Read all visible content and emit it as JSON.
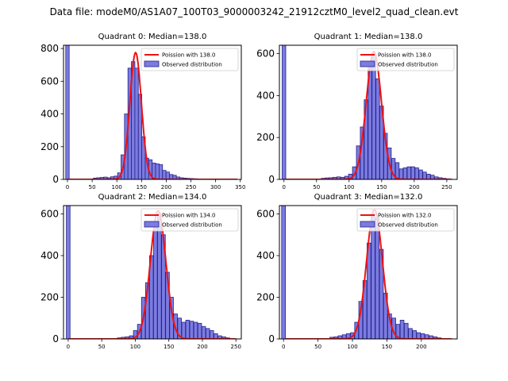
{
  "figure": {
    "suptitle": "Data file: modeM0/AS1A07_100T03_9000003242_21912cztM0_level2_quad_clean.evt"
  },
  "colors": {
    "bar_fill": "#7b7be0",
    "bar_edge": "#23238c",
    "curve": "#ee1111"
  },
  "chart_data": [
    {
      "type": "bar",
      "title": "Quadrant 0: Median=138.0",
      "xlim": [
        -8,
        352
      ],
      "ylim": [
        0,
        820
      ],
      "xticks": [
        0,
        50,
        100,
        150,
        200,
        250,
        300,
        350
      ],
      "yticks": [
        0,
        200,
        400,
        600,
        800
      ],
      "legend": {
        "position": "top-right",
        "entries": [
          "Poission with 138.0",
          "Observed distribution"
        ]
      },
      "bin_width": 7,
      "bins": [
        [
          0,
          820
        ],
        [
          56,
          8
        ],
        [
          63,
          10
        ],
        [
          70,
          12
        ],
        [
          77,
          14
        ],
        [
          84,
          10
        ],
        [
          91,
          16
        ],
        [
          98,
          20
        ],
        [
          105,
          40
        ],
        [
          112,
          150
        ],
        [
          119,
          400
        ],
        [
          126,
          680
        ],
        [
          133,
          720
        ],
        [
          140,
          680
        ],
        [
          147,
          520
        ],
        [
          154,
          260
        ],
        [
          161,
          130
        ],
        [
          168,
          120
        ],
        [
          175,
          100
        ],
        [
          182,
          95
        ],
        [
          189,
          90
        ],
        [
          196,
          55
        ],
        [
          203,
          45
        ],
        [
          210,
          30
        ],
        [
          217,
          25
        ],
        [
          224,
          15
        ],
        [
          231,
          10
        ],
        [
          238,
          8
        ],
        [
          245,
          6
        ],
        [
          252,
          5
        ],
        [
          259,
          4
        ],
        [
          266,
          3
        ]
      ],
      "curve": {
        "mean": 138.0,
        "peak": 775,
        "sigma": 11.7,
        "x": [
          0,
          20,
          40,
          60,
          80,
          95,
          105,
          112,
          118,
          122,
          126,
          130,
          134,
          138,
          142,
          146,
          150,
          154,
          158,
          162,
          166,
          172,
          180,
          195,
          220,
          260,
          300,
          340
        ]
      }
    },
    {
      "type": "bar",
      "title": "Quadrant 1: Median=138.0",
      "xlim": [
        -7,
        266
      ],
      "ylim": [
        0,
        640
      ],
      "xticks": [
        0,
        50,
        100,
        150,
        200,
        250
      ],
      "yticks": [
        0,
        200,
        400,
        600
      ],
      "legend": {
        "position": "top-right",
        "entries": [
          "Poission with 138.0",
          "Observed distribution"
        ]
      },
      "bin_width": 5.5,
      "bins": [
        [
          0,
          640
        ],
        [
          60,
          5
        ],
        [
          66,
          7
        ],
        [
          72,
          8
        ],
        [
          78,
          10
        ],
        [
          84,
          12
        ],
        [
          90,
          10
        ],
        [
          96,
          15
        ],
        [
          102,
          25
        ],
        [
          108,
          60
        ],
        [
          114,
          160
        ],
        [
          120,
          250
        ],
        [
          126,
          380
        ],
        [
          132,
          560
        ],
        [
          138,
          600
        ],
        [
          144,
          480
        ],
        [
          150,
          350
        ],
        [
          156,
          220
        ],
        [
          162,
          150
        ],
        [
          168,
          100
        ],
        [
          174,
          80
        ],
        [
          180,
          50
        ],
        [
          186,
          55
        ],
        [
          192,
          60
        ],
        [
          198,
          60
        ],
        [
          204,
          55
        ],
        [
          210,
          45
        ],
        [
          216,
          35
        ],
        [
          222,
          25
        ],
        [
          228,
          20
        ],
        [
          234,
          12
        ],
        [
          240,
          8
        ],
        [
          246,
          5
        ],
        [
          252,
          3
        ]
      ],
      "curve": {
        "mean": 138.0,
        "peak": 610,
        "sigma": 11.7,
        "x": [
          0,
          20,
          40,
          60,
          80,
          95,
          105,
          112,
          118,
          122,
          126,
          130,
          134,
          138,
          142,
          146,
          150,
          154,
          158,
          162,
          166,
          172,
          180,
          195,
          220,
          255
        ]
      }
    },
    {
      "type": "bar",
      "title": "Quadrant 2: Median=134.0",
      "xlim": [
        -7,
        258
      ],
      "ylim": [
        0,
        640
      ],
      "xticks": [
        0,
        50,
        100,
        150,
        200,
        250
      ],
      "yticks": [
        0,
        200,
        400,
        600
      ],
      "legend": {
        "position": "top-right",
        "entries": [
          "Poission with 134.0",
          "Observed distribution"
        ]
      },
      "bin_width": 5.5,
      "bins": [
        [
          0,
          640
        ],
        [
          76,
          5
        ],
        [
          82,
          8
        ],
        [
          88,
          10
        ],
        [
          94,
          15
        ],
        [
          100,
          40
        ],
        [
          106,
          70
        ],
        [
          112,
          200
        ],
        [
          118,
          270
        ],
        [
          124,
          400
        ],
        [
          130,
          550
        ],
        [
          136,
          600
        ],
        [
          142,
          500
        ],
        [
          148,
          320
        ],
        [
          154,
          200
        ],
        [
          160,
          120
        ],
        [
          166,
          100
        ],
        [
          172,
          80
        ],
        [
          178,
          90
        ],
        [
          184,
          85
        ],
        [
          190,
          80
        ],
        [
          196,
          75
        ],
        [
          202,
          60
        ],
        [
          208,
          50
        ],
        [
          214,
          40
        ],
        [
          220,
          25
        ],
        [
          226,
          15
        ],
        [
          232,
          10
        ],
        [
          238,
          5
        ]
      ],
      "curve": {
        "mean": 134.0,
        "peak": 615,
        "sigma": 11.6,
        "x": [
          0,
          20,
          40,
          60,
          80,
          95,
          105,
          112,
          118,
          122,
          126,
          130,
          134,
          138,
          142,
          146,
          150,
          154,
          158,
          162,
          168,
          176,
          190,
          210,
          250
        ]
      }
    },
    {
      "type": "bar",
      "title": "Quadrant 3: Median=132.0",
      "xlim": [
        -6,
        252
      ],
      "ylim": [
        0,
        640
      ],
      "xticks": [
        0,
        50,
        100,
        150,
        200
      ],
      "yticks": [
        0,
        200,
        400,
        600
      ],
      "legend": {
        "position": "top-right",
        "entries": [
          "Poission with 132.0",
          "Observed distribution"
        ]
      },
      "bin_width": 5.5,
      "bins": [
        [
          0,
          640
        ],
        [
          70,
          8
        ],
        [
          76,
          10
        ],
        [
          82,
          15
        ],
        [
          88,
          20
        ],
        [
          94,
          25
        ],
        [
          100,
          30
        ],
        [
          106,
          80
        ],
        [
          112,
          180
        ],
        [
          118,
          280
        ],
        [
          124,
          460
        ],
        [
          130,
          600
        ],
        [
          136,
          580
        ],
        [
          142,
          430
        ],
        [
          148,
          220
        ],
        [
          154,
          120
        ],
        [
          160,
          100
        ],
        [
          166,
          70
        ],
        [
          172,
          90
        ],
        [
          178,
          75
        ],
        [
          184,
          50
        ],
        [
          190,
          40
        ],
        [
          196,
          30
        ],
        [
          202,
          25
        ],
        [
          208,
          20
        ],
        [
          214,
          15
        ],
        [
          220,
          10
        ],
        [
          226,
          5
        ]
      ],
      "curve": {
        "mean": 132.0,
        "peak": 620,
        "sigma": 11.5,
        "x": [
          0,
          20,
          40,
          60,
          80,
          95,
          105,
          110,
          116,
          120,
          124,
          128,
          132,
          136,
          140,
          144,
          148,
          152,
          156,
          160,
          166,
          174,
          190,
          210,
          228
        ]
      }
    }
  ]
}
